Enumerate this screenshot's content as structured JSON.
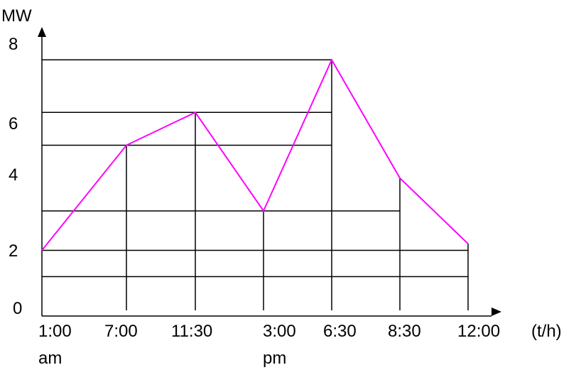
{
  "chart_data": {
    "type": "line",
    "ylabel": "MW",
    "xlabel": "(t/h)",
    "y_ticks": [
      "0",
      "2",
      "4",
      "6",
      "8"
    ],
    "ylim": [
      0,
      8
    ],
    "x_ticks": [
      {
        "label": "1:00",
        "sublabel": "am"
      },
      {
        "label": "7:00",
        "sublabel": ""
      },
      {
        "label": "11:30",
        "sublabel": ""
      },
      {
        "label": "3:00",
        "sublabel": "pm"
      },
      {
        "label": "6:30",
        "sublabel": ""
      },
      {
        "label": "8:30",
        "sublabel": ""
      },
      {
        "label": "12:00",
        "sublabel": ""
      }
    ],
    "series": [
      {
        "values": [
          2.0,
          5.2,
          6.2,
          3.2,
          7.8,
          4.2,
          2.2
        ]
      }
    ],
    "reference_levels": [
      1.2,
      3.2,
      5.2,
      6.2,
      7.8
    ],
    "grid": true,
    "colors": {
      "series": "#ff00ff",
      "axes": "#000000",
      "grid": "#000000"
    }
  }
}
